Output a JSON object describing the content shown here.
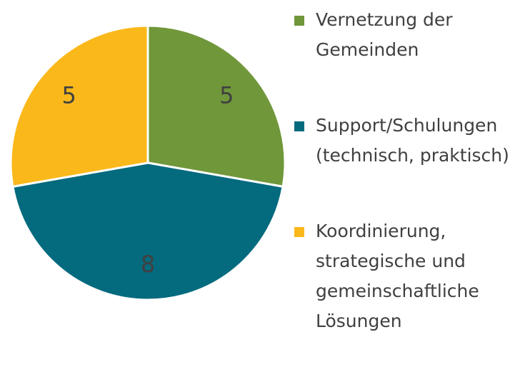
{
  "chart_data": {
    "type": "pie",
    "categories": [
      "Vernetzung der Gemeinden",
      "Support/Schulungen (technisch, praktisch)",
      "Koordinierung, strategische und gemeinschaftliche Lösungen"
    ],
    "values": [
      5,
      8,
      5
    ],
    "colors": [
      "#70973a",
      "#046a7e",
      "#fbb81a"
    ],
    "legend": "right"
  }
}
